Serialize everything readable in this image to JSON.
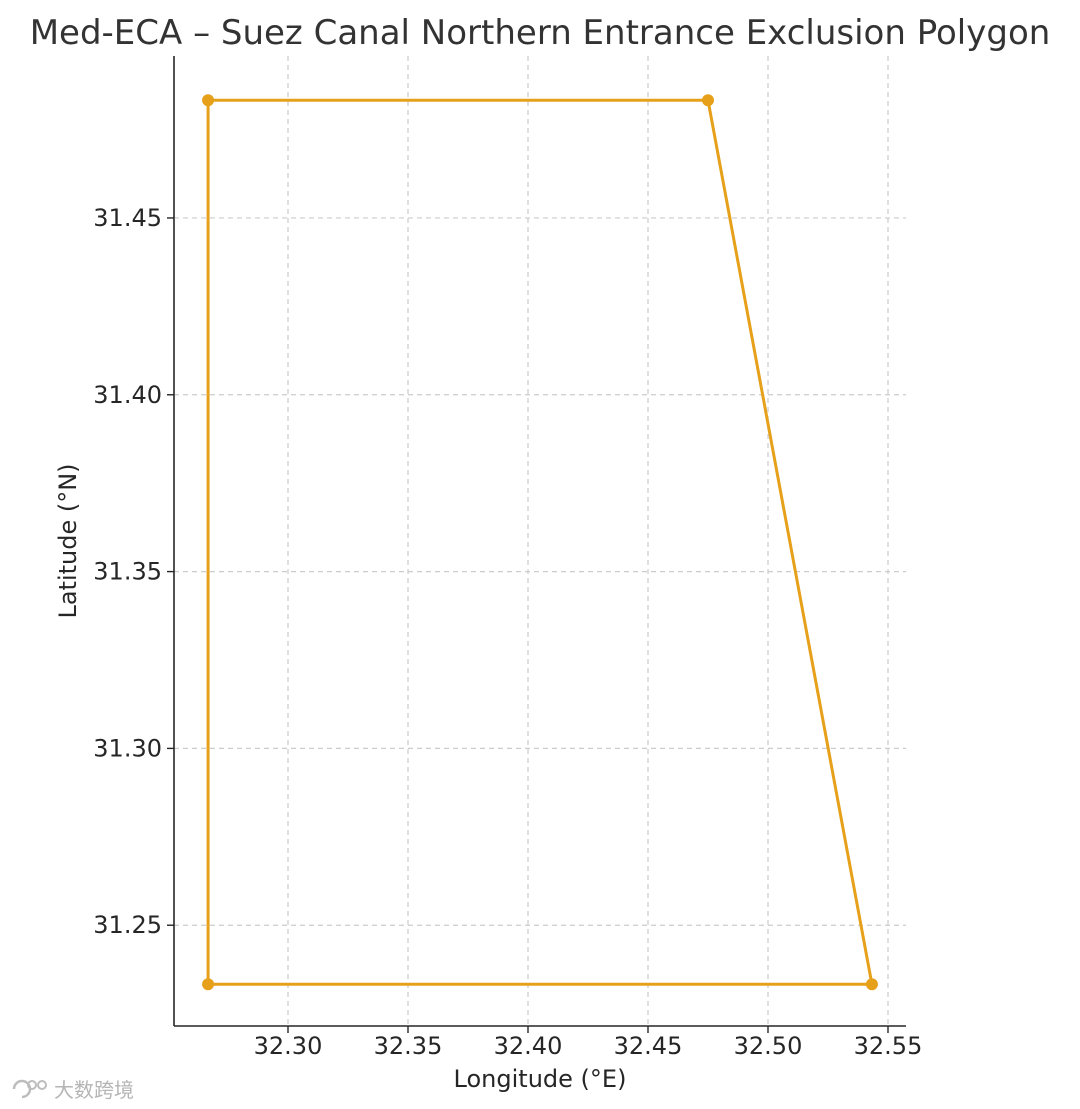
{
  "chart_data": {
    "type": "line",
    "title": "Med-ECA – Suez Canal Northern Entrance Exclusion Polygon",
    "xlabel": "Longitude (°E)",
    "ylabel": "Latitude (°N)",
    "xlim": [
      32.2525,
      32.5575
    ],
    "ylim": [
      31.2215,
      31.4958
    ],
    "xticks": [
      "32.30",
      "32.35",
      "32.40",
      "32.45",
      "32.50",
      "32.55"
    ],
    "yticks": [
      "31.25",
      "31.30",
      "31.35",
      "31.40",
      "31.45"
    ],
    "grid": true,
    "legend": "none",
    "series": [
      {
        "closed": true,
        "color": "#e6a01a",
        "points": [
          {
            "x": 32.2667,
            "y": 31.4833
          },
          {
            "x": 32.475,
            "y": 31.4833
          },
          {
            "x": 32.5433,
            "y": 31.2333
          },
          {
            "x": 32.2667,
            "y": 31.2333
          }
        ]
      }
    ]
  },
  "watermark": {
    "text": "大数跨境"
  }
}
